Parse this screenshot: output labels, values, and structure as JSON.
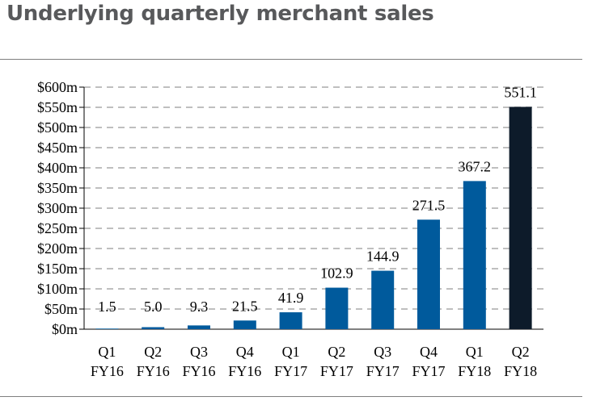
{
  "title": "Underlying quarterly merchant sales",
  "chart_data": {
    "type": "bar",
    "categories": [
      [
        "Q1",
        "FY16"
      ],
      [
        "Q2",
        "FY16"
      ],
      [
        "Q3",
        "FY16"
      ],
      [
        "Q4",
        "FY16"
      ],
      [
        "Q1",
        "FY17"
      ],
      [
        "Q2",
        "FY17"
      ],
      [
        "Q3",
        "FY17"
      ],
      [
        "Q4",
        "FY17"
      ],
      [
        "Q1",
        "FY18"
      ],
      [
        "Q2",
        "FY18"
      ]
    ],
    "values": [
      1.5,
      5.0,
      9.3,
      21.5,
      41.9,
      102.9,
      144.9,
      271.5,
      367.2,
      551.1
    ],
    "data_labels": [
      "1.5",
      "5.0",
      "9.3",
      "21.5",
      "41.9",
      "102.9",
      "144.9",
      "271.5",
      "367.2",
      "551.1"
    ],
    "ylim": [
      0,
      600
    ],
    "yticks": [
      0,
      50,
      100,
      150,
      200,
      250,
      300,
      350,
      400,
      450,
      500,
      550,
      600
    ],
    "ytick_labels": [
      "$0m",
      "$50m",
      "$100m",
      "$150m",
      "$200m",
      "$250m",
      "$300m",
      "$350m",
      "$400m",
      "$450m",
      "$500m",
      "$550m",
      "$600m"
    ],
    "grid": "dashed horizontal",
    "colors": {
      "bar": "#005a9c",
      "highlight_bar": "#0d1b2a",
      "grid": "#bfbfbf"
    },
    "highlight_index": 9
  }
}
